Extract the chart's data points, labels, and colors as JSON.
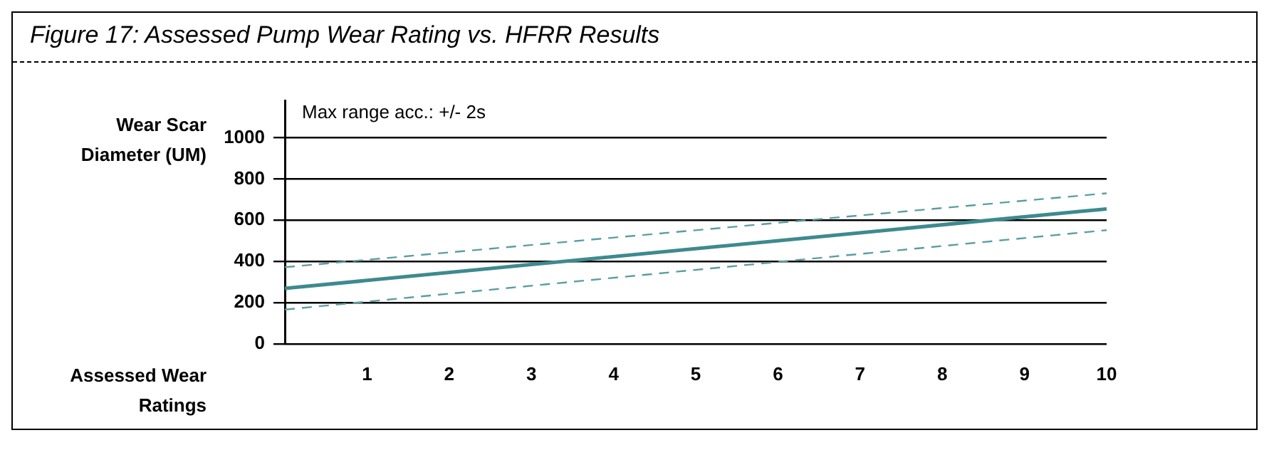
{
  "chart_data": {
    "type": "line",
    "title": "Figure 17: Assessed Pump Wear Rating vs. HFRR Results",
    "ylabel": "Wear Scar Diameter (UM)",
    "xlabel": "Assessed Wear Ratings",
    "annotations": [
      "Max range acc.: +/- 2s"
    ],
    "series": [
      {
        "values": [
          372,
          731
        ],
        "color": "#5a9ea3",
        "line_style": "dashed"
      },
      {
        "values": [
          269,
          655
        ],
        "color": "#3d8a8f",
        "line_style": "solid"
      },
      {
        "values": [
          166,
          552
        ],
        "color": "#5a9ea3",
        "line_style": "dashed"
      }
    ],
    "x": [
      0,
      10
    ],
    "xlim": [
      0,
      10
    ],
    "xticks": [
      1,
      2,
      3,
      4,
      5,
      6,
      7,
      8,
      9,
      10
    ],
    "ylim": [
      0,
      1180
    ],
    "yticks": [
      0,
      200,
      400,
      600,
      800,
      1000
    ],
    "grid": "y",
    "marker": "none"
  }
}
